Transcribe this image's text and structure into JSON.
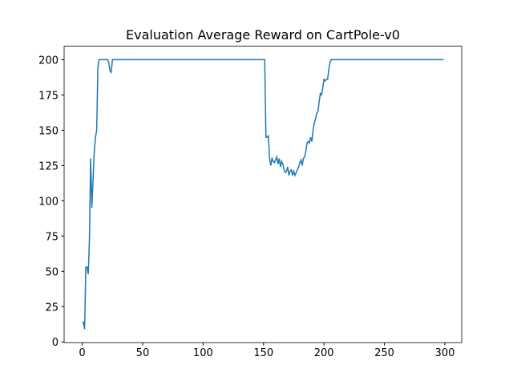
{
  "chart_data": {
    "type": "line",
    "title": "Evaluation Average Reward on CartPole-v0",
    "x": [
      0,
      1,
      2,
      3,
      4,
      5,
      6,
      7,
      8,
      9,
      10,
      11,
      12,
      13,
      14,
      15,
      16,
      17,
      18,
      19,
      20,
      21,
      22,
      23,
      24,
      25,
      26,
      27,
      28,
      29,
      30,
      31,
      32,
      33,
      34,
      35,
      36,
      37,
      38,
      39,
      40,
      41,
      42,
      43,
      44,
      45,
      46,
      47,
      48,
      49,
      50,
      51,
      52,
      53,
      54,
      55,
      56,
      57,
      58,
      59,
      60,
      61,
      62,
      63,
      64,
      65,
      66,
      67,
      68,
      69,
      70,
      71,
      72,
      73,
      74,
      75,
      76,
      77,
      78,
      79,
      80,
      81,
      82,
      83,
      84,
      85,
      86,
      87,
      88,
      89,
      90,
      91,
      92,
      93,
      94,
      95,
      96,
      97,
      98,
      99,
      100,
      101,
      102,
      103,
      104,
      105,
      106,
      107,
      108,
      109,
      110,
      111,
      112,
      113,
      114,
      115,
      116,
      117,
      118,
      119,
      120,
      121,
      122,
      123,
      124,
      125,
      126,
      127,
      128,
      129,
      130,
      131,
      132,
      133,
      134,
      135,
      136,
      137,
      138,
      139,
      140,
      141,
      142,
      143,
      144,
      145,
      146,
      147,
      148,
      149,
      150,
      151,
      152,
      153,
      154,
      155,
      156,
      157,
      158,
      159,
      160,
      161,
      162,
      163,
      164,
      165,
      166,
      167,
      168,
      169,
      170,
      171,
      172,
      173,
      174,
      175,
      176,
      177,
      178,
      179,
      180,
      181,
      182,
      183,
      184,
      185,
      186,
      187,
      188,
      189,
      190,
      191,
      192,
      193,
      194,
      195,
      196,
      197,
      198,
      199,
      200,
      201,
      202,
      203,
      204,
      205,
      206,
      207,
      208,
      209,
      210,
      211,
      212,
      213,
      214,
      215,
      216,
      217,
      218,
      219,
      220,
      221,
      222,
      223,
      224,
      225,
      226,
      227,
      228,
      229,
      230,
      231,
      232,
      233,
      234,
      235,
      236,
      237,
      238,
      239,
      240,
      241,
      242,
      243,
      244,
      245,
      246,
      247,
      248,
      249,
      250,
      251,
      252,
      253,
      254,
      255,
      256,
      257,
      258,
      259,
      260,
      261,
      262,
      263,
      264,
      265,
      266,
      267,
      268,
      269,
      270,
      271,
      272,
      273,
      274,
      275,
      276,
      277,
      278,
      279,
      280,
      281,
      282,
      283,
      284,
      285,
      286,
      287,
      288,
      289,
      290,
      291,
      292,
      293,
      294,
      295,
      296,
      297,
      298,
      299
    ],
    "series": [
      {
        "color": "#1f77b4",
        "values": [
          14,
          14,
          9,
          53,
          53,
          48,
          73,
          130,
          95,
          115,
          135,
          145,
          150,
          195,
          200,
          200,
          200,
          200,
          200,
          200,
          200,
          200,
          198,
          192,
          191,
          200,
          200,
          200,
          200,
          200,
          200,
          200,
          200,
          200,
          200,
          200,
          200,
          200,
          200,
          200,
          200,
          200,
          200,
          200,
          200,
          200,
          200,
          200,
          200,
          200,
          200,
          200,
          200,
          200,
          200,
          200,
          200,
          200,
          200,
          200,
          200,
          200,
          200,
          200,
          200,
          200,
          200,
          200,
          200,
          200,
          200,
          200,
          200,
          200,
          200,
          200,
          200,
          200,
          200,
          200,
          200,
          200,
          200,
          200,
          200,
          200,
          200,
          200,
          200,
          200,
          200,
          200,
          200,
          200,
          200,
          200,
          200,
          200,
          200,
          200,
          200,
          200,
          200,
          200,
          200,
          200,
          200,
          200,
          200,
          200,
          200,
          200,
          200,
          200,
          200,
          200,
          200,
          200,
          200,
          200,
          200,
          200,
          200,
          200,
          200,
          200,
          200,
          200,
          200,
          200,
          200,
          200,
          200,
          200,
          200,
          200,
          200,
          200,
          200,
          200,
          200,
          200,
          200,
          200,
          200,
          200,
          200,
          200,
          200,
          200,
          200,
          200,
          145,
          145,
          146,
          130,
          125,
          130,
          128,
          127,
          129,
          131,
          126,
          130,
          124,
          128,
          126,
          122,
          120,
          121,
          124,
          118,
          121,
          122,
          118,
          121,
          118,
          120,
          122,
          124,
          127,
          129,
          125,
          130,
          131,
          135,
          141,
          142,
          141,
          145,
          142,
          150,
          155,
          158,
          162,
          163,
          170,
          176,
          175,
          180,
          186,
          185,
          186,
          186,
          193,
          198,
          200,
          200,
          200,
          200,
          200,
          200,
          200,
          200,
          200,
          200,
          200,
          200,
          200,
          200,
          200,
          200,
          200,
          200,
          200,
          200,
          200,
          200,
          200,
          200,
          200,
          200,
          200,
          200,
          200,
          200,
          200,
          200,
          200,
          200,
          200,
          200,
          200,
          200,
          200,
          200,
          200,
          200,
          200,
          200,
          200,
          200,
          200,
          200,
          200,
          200,
          200,
          200,
          200,
          200,
          200,
          200,
          200,
          200,
          200,
          200,
          200,
          200,
          200,
          200,
          200,
          200,
          200,
          200,
          200,
          200,
          200,
          200,
          200,
          200,
          200,
          200,
          200,
          200,
          200,
          200,
          200,
          200,
          200,
          200,
          200,
          200,
          200,
          200,
          200,
          200,
          200,
          200,
          200,
          200
        ]
      }
    ],
    "xlim": [
      -14.95,
      313.95
    ],
    "xticks": [
      0,
      50,
      100,
      150,
      200,
      250,
      300
    ],
    "ylim": [
      -0.55,
      209.55
    ],
    "yticks": [
      0,
      25,
      50,
      75,
      100,
      125,
      150,
      175,
      200
    ]
  }
}
